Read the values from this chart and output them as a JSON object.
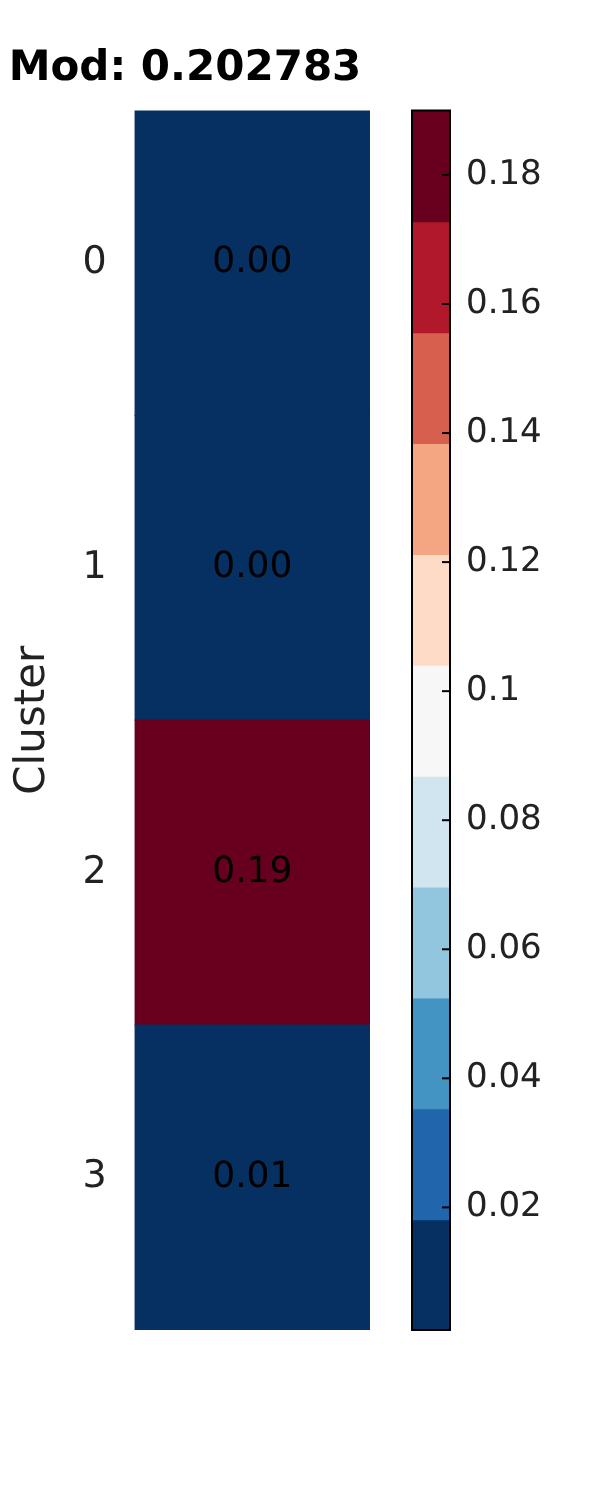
{
  "chart_data": {
    "type": "heatmap",
    "title": "Mod: 0.202783",
    "ylabel": "Cluster",
    "categories": [
      null
    ],
    "y_categories": [
      "0",
      "1",
      "2",
      "3"
    ],
    "cells": [
      [
        0.001
      ],
      [
        0.001
      ],
      [
        0.19
      ],
      [
        0.01
      ]
    ],
    "cell_labels": [
      [
        "0.00"
      ],
      [
        "0.00"
      ],
      [
        "0.19"
      ],
      [
        "0.01"
      ]
    ],
    "clim": [
      0.001,
      0.19
    ],
    "cticks": [
      0.02,
      0.04,
      0.06,
      0.08,
      0.1,
      0.12,
      0.14,
      0.16,
      0.18
    ]
  }
}
